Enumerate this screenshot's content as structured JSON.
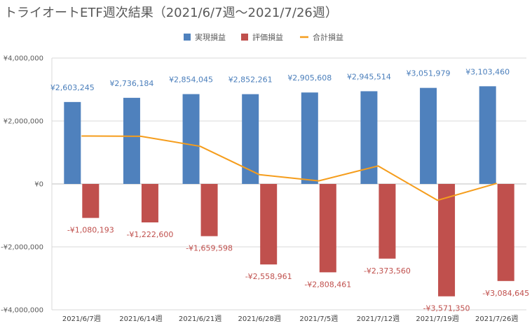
{
  "chart_data": {
    "type": "bar",
    "title": "トライオートETF週次結果（2021/6/7週～2021/7/26週）",
    "categories": [
      "2021/6/7週",
      "2021/6/14週",
      "2021/6/21週",
      "2021/6/28週",
      "2021/7/5週",
      "2021/7/12週",
      "2021/7/19週",
      "2021/7/26週"
    ],
    "series": [
      {
        "name": "実現損益",
        "type": "bar",
        "color": "#4f81bd",
        "values": [
          2603245,
          2736184,
          2854045,
          2852261,
          2905608,
          2945514,
          3051979,
          3103460
        ],
        "labels": [
          "¥2,603,245",
          "¥2,736,184",
          "¥2,854,045",
          "¥2,852,261",
          "¥2,905,608",
          "¥2,945,514",
          "¥3,051,979",
          "¥3,103,460"
        ]
      },
      {
        "name": "評価損益",
        "type": "bar",
        "color": "#c0504d",
        "values": [
          -1080193,
          -1222600,
          -1659598,
          -2558961,
          -2808461,
          -2373560,
          -3571350,
          -3084645
        ],
        "labels": [
          "-¥1,080,193",
          "-¥1,222,600",
          "-¥1,659,598",
          "-¥2,558,961",
          "-¥2,808,461",
          "-¥2,373,560",
          "-¥3,571,350",
          "-¥3,084,645"
        ]
      },
      {
        "name": "合計損益",
        "type": "line",
        "color": "#f59d1c",
        "values": [
          1523052,
          1513584,
          1194447,
          293300,
          97147,
          571954,
          -519371,
          18815
        ]
      }
    ],
    "ylim": [
      -4000000,
      4000000
    ],
    "yticks": [
      {
        "value": 4000000,
        "label": "¥4,000,000"
      },
      {
        "value": 2000000,
        "label": "¥2,000,000"
      },
      {
        "value": 0,
        "label": "¥0"
      },
      {
        "value": -2000000,
        "label": "-¥2,000,000"
      },
      {
        "value": -4000000,
        "label": "-¥4,000,000"
      }
    ],
    "grid": true,
    "legend_position": "top"
  }
}
